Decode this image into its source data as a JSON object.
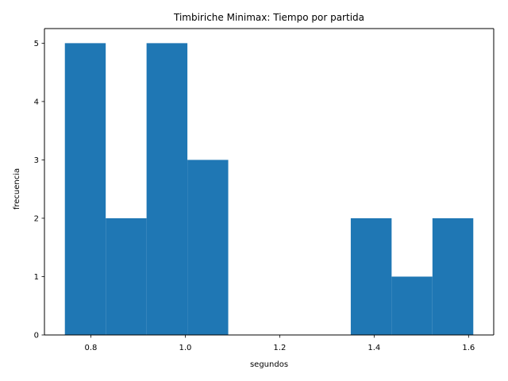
{
  "chart_data": {
    "type": "bar",
    "title": "Timbiriche Minimax: Tiempo por partida",
    "xlabel": "segundos",
    "ylabel": "frecuencia",
    "bin_edges": [
      0.745,
      0.8315,
      0.918,
      1.0045,
      1.091,
      1.1775,
      1.264,
      1.3505,
      1.437,
      1.5235,
      1.61
    ],
    "values": [
      5,
      2,
      5,
      3,
      0,
      0,
      0,
      2,
      1,
      2
    ],
    "xlim": [
      0.70175,
      1.65325
    ],
    "ylim": [
      0,
      5.25
    ],
    "xticks": [
      0.8,
      1.0,
      1.2,
      1.4,
      1.6
    ],
    "xtick_labels": [
      "0.8",
      "1.0",
      "1.2",
      "1.4",
      "1.6"
    ],
    "yticks": [
      0,
      1,
      2,
      3,
      4,
      5
    ],
    "ytick_labels": [
      "0",
      "1",
      "2",
      "3",
      "4",
      "5"
    ],
    "bar_color": "#1f77b4",
    "grid": false,
    "legend": "none"
  }
}
